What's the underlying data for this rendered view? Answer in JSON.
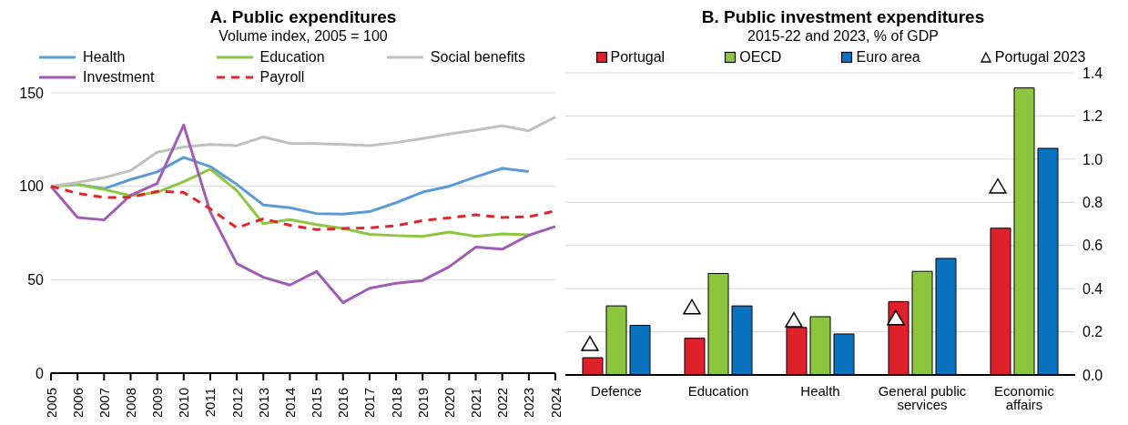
{
  "chart_data": [
    {
      "type": "line",
      "title": "A. Public expenditures",
      "subtitle": "Volume index, 2005 = 100",
      "categories": [
        "2005",
        "2006",
        "2007",
        "2008",
        "2009",
        "2010",
        "2011",
        "2012",
        "2013",
        "2014",
        "2015",
        "2016",
        "2017",
        "2018",
        "2019",
        "2020",
        "2021",
        "2022",
        "2023",
        "2024"
      ],
      "series": [
        {
          "name": "Health",
          "color": "#5b9bd5",
          "values": [
            100,
            101,
            98.7,
            103.6,
            107.7,
            115.5,
            110.5,
            101,
            90,
            88.5,
            85.4,
            85.1,
            86.4,
            91.2,
            96.9,
            100,
            105,
            109.6,
            107.9,
            null
          ]
        },
        {
          "name": "Education",
          "color": "#8dc63f",
          "values": [
            100,
            101,
            98.3,
            95,
            96.7,
            102.5,
            109.2,
            97.7,
            80,
            82.2,
            79.5,
            77.4,
            74.3,
            73.6,
            73.2,
            75.5,
            73.2,
            74.5,
            74,
            null
          ]
        },
        {
          "name": "Social benefits",
          "color": "#c0c0c0",
          "values": [
            100,
            102,
            104.6,
            108.4,
            118.2,
            121,
            122.4,
            121.8,
            126.4,
            123,
            122.8,
            122.4,
            121.8,
            123.4,
            125.5,
            128,
            130,
            132.4,
            129.7,
            137
          ]
        },
        {
          "name": "Investment",
          "color": "#a05db4",
          "values": [
            100,
            83.3,
            82,
            95.2,
            101.5,
            132.8,
            86.2,
            58.6,
            51.3,
            47.1,
            54.4,
            37.7,
            45.4,
            48.1,
            49.6,
            56.9,
            67.4,
            66.3,
            73.8,
            78.5
          ]
        },
        {
          "name": "Payroll",
          "color": "#e0262a",
          "line_style": "dashed",
          "values": [
            100,
            96.2,
            94,
            94.1,
            97.3,
            96.7,
            87.9,
            77.8,
            82.6,
            79.1,
            76.8,
            77.4,
            77.8,
            78.9,
            81.6,
            83.1,
            84.7,
            83.3,
            83.7,
            86.8
          ]
        }
      ],
      "ylim": [
        0,
        150
      ],
      "yticks": [
        0,
        50,
        100,
        150
      ],
      "grid": "y",
      "legend": "top",
      "marker": "none"
    },
    {
      "type": "bar",
      "title": "B. Public investment expenditures",
      "subtitle": "2015-22 and 2023, % of GDP",
      "categories": [
        "Defence",
        "Education",
        "Health",
        "General public services",
        "Economic affairs"
      ],
      "series": [
        {
          "name": "Portugal",
          "color": "#e0202a",
          "values": [
            0.08,
            0.17,
            0.22,
            0.34,
            0.68
          ]
        },
        {
          "name": "OECD",
          "color": "#8cc63f",
          "values": [
            0.32,
            0.47,
            0.27,
            0.48,
            1.33
          ]
        },
        {
          "name": "Euro area",
          "color": "#0a73c0",
          "values": [
            0.23,
            0.32,
            0.19,
            0.54,
            1.05
          ]
        },
        {
          "name": "Portugal 2023",
          "type": "scatter",
          "color": "#ffffff",
          "marker": "triangle",
          "values": [
            0.14,
            0.31,
            0.25,
            0.26,
            0.87
          ]
        }
      ],
      "ylim": [
        0,
        1.4
      ],
      "yticks": [
        {
          "value": 0,
          "label": "0.0"
        },
        {
          "value": 0.2,
          "label": "0.2"
        },
        {
          "value": 0.4,
          "label": "0.4"
        },
        {
          "value": 0.6,
          "label": "0.6"
        },
        {
          "value": 0.8,
          "label": "0.8"
        },
        {
          "value": 1,
          "label": "1.0"
        },
        {
          "value": 1.2,
          "label": "1.2"
        },
        {
          "value": 1.4,
          "label": "1.4"
        }
      ],
      "grid": "y",
      "legend": "top"
    }
  ]
}
